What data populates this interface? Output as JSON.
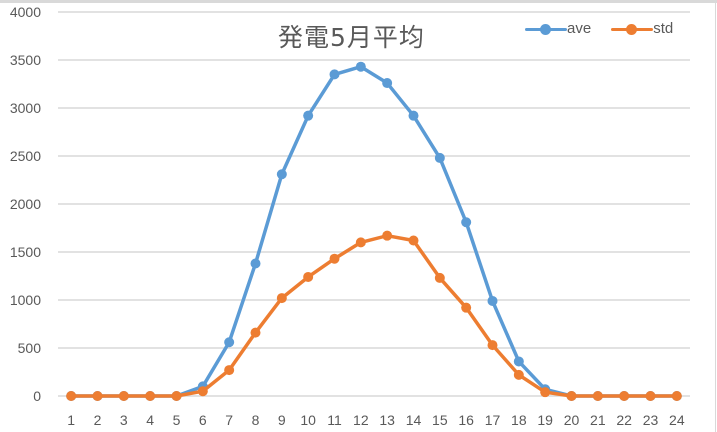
{
  "chart_data": {
    "type": "line",
    "title": "発電5月平均",
    "xlabel": "",
    "ylabel": "",
    "x": [
      1,
      2,
      3,
      4,
      5,
      6,
      7,
      8,
      9,
      10,
      11,
      12,
      13,
      14,
      15,
      16,
      17,
      18,
      19,
      20,
      21,
      22,
      23,
      24
    ],
    "categories": [
      "1",
      "2",
      "3",
      "4",
      "5",
      "6",
      "7",
      "8",
      "9",
      "10",
      "11",
      "12",
      "13",
      "14",
      "15",
      "16",
      "17",
      "18",
      "19",
      "20",
      "21",
      "22",
      "23",
      "24"
    ],
    "series": [
      {
        "name": "ave",
        "color": "#5B9BD5",
        "values": [
          0,
          0,
          0,
          0,
          0,
          100,
          560,
          1380,
          2310,
          2920,
          3350,
          3430,
          3260,
          2920,
          2480,
          1810,
          990,
          360,
          70,
          0,
          0,
          0,
          0,
          0
        ]
      },
      {
        "name": "std",
        "color": "#ED7D31",
        "values": [
          0,
          0,
          0,
          0,
          0,
          50,
          270,
          660,
          1020,
          1240,
          1430,
          1600,
          1670,
          1620,
          1230,
          920,
          530,
          220,
          40,
          0,
          0,
          0,
          0,
          0
        ]
      }
    ],
    "ylim": [
      0,
      4000
    ],
    "yticks": [
      "0",
      "500",
      "1000",
      "1500",
      "2000",
      "2500",
      "3000",
      "3500",
      "4000"
    ],
    "grid": true,
    "legend_position": "top-right"
  },
  "legend": [
    {
      "label": "ave",
      "color": "#5B9BD5"
    },
    {
      "label": "std",
      "color": "#ED7D31"
    }
  ]
}
